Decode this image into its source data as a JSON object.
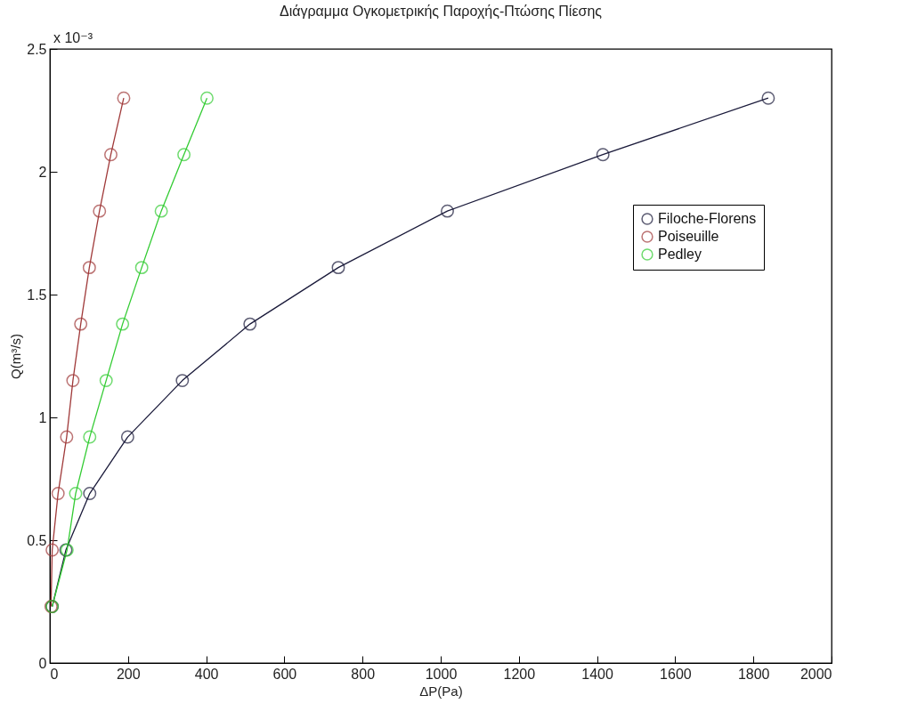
{
  "chart_data": {
    "type": "line",
    "title": "Διάγραμμα Ογκομετρικής Παροχής-Πτώσης Πίεσης",
    "xlabel": "ΔP(Pa)",
    "ylabel": "Q(m³/s)",
    "annotations": [
      "x 10⁻³"
    ],
    "xlim": [
      0,
      2000
    ],
    "xticks": [
      0,
      200,
      400,
      600,
      800,
      1000,
      1200,
      1400,
      1600,
      1800,
      2000
    ],
    "ylim": [
      0,
      2.5
    ],
    "yticks": [
      0,
      0.5,
      1,
      1.5,
      2,
      2.5
    ],
    "grid": false,
    "legend": "top right",
    "marker": "circle",
    "line_style": "solid",
    "series": [
      {
        "name": "Filoche-Florens",
        "color": "#1a1a3a",
        "x": [
          6,
          41,
          102,
          199,
          339,
          512,
          738,
          1017,
          1415,
          1838
        ],
        "values": [
          0.23,
          0.46,
          0.69,
          0.92,
          1.15,
          1.38,
          1.61,
          1.84,
          2.07,
          2.3
        ]
      },
      {
        "name": "Poiseuille",
        "color": "#a03a3a",
        "x": [
          3,
          6,
          21,
          43,
          59,
          79,
          101,
          127,
          156,
          189
        ],
        "values": [
          0.23,
          0.46,
          0.69,
          0.92,
          1.15,
          1.38,
          1.61,
          1.84,
          2.07,
          2.3
        ]
      },
      {
        "name": "Pedley",
        "color": "#33cc33",
        "x": [
          6,
          44,
          66,
          102,
          144,
          186,
          235,
          285,
          343,
          402
        ],
        "values": [
          0.23,
          0.46,
          0.69,
          0.92,
          1.15,
          1.38,
          1.61,
          1.84,
          2.07,
          2.3
        ]
      }
    ]
  }
}
